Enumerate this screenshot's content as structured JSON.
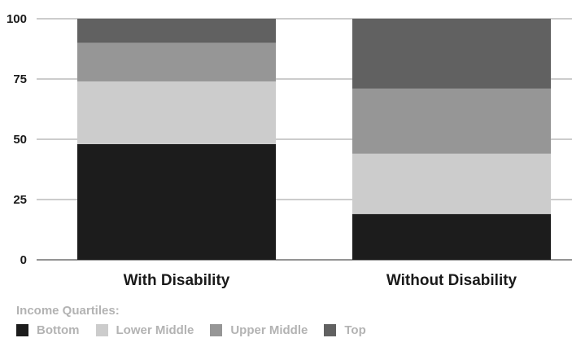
{
  "chart_data": {
    "type": "bar",
    "stacked": true,
    "title": "",
    "xlabel": "",
    "ylabel": "",
    "ylim": [
      0,
      100
    ],
    "yticks": [
      0,
      25,
      50,
      75,
      100
    ],
    "grid": true,
    "categories": [
      "With Disability",
      "Without Disability"
    ],
    "series": [
      {
        "name": "Bottom",
        "color": "#1c1c1c",
        "values": [
          48,
          19
        ]
      },
      {
        "name": "Lower Middle",
        "color": "#cccccc",
        "values": [
          26,
          25
        ]
      },
      {
        "name": "Upper Middle",
        "color": "#969696",
        "values": [
          16,
          27
        ]
      },
      {
        "name": "Top",
        "color": "#616161",
        "values": [
          10,
          29
        ]
      }
    ],
    "legend": {
      "title": "Income Quartiles:",
      "position": "bottom-left"
    }
  }
}
